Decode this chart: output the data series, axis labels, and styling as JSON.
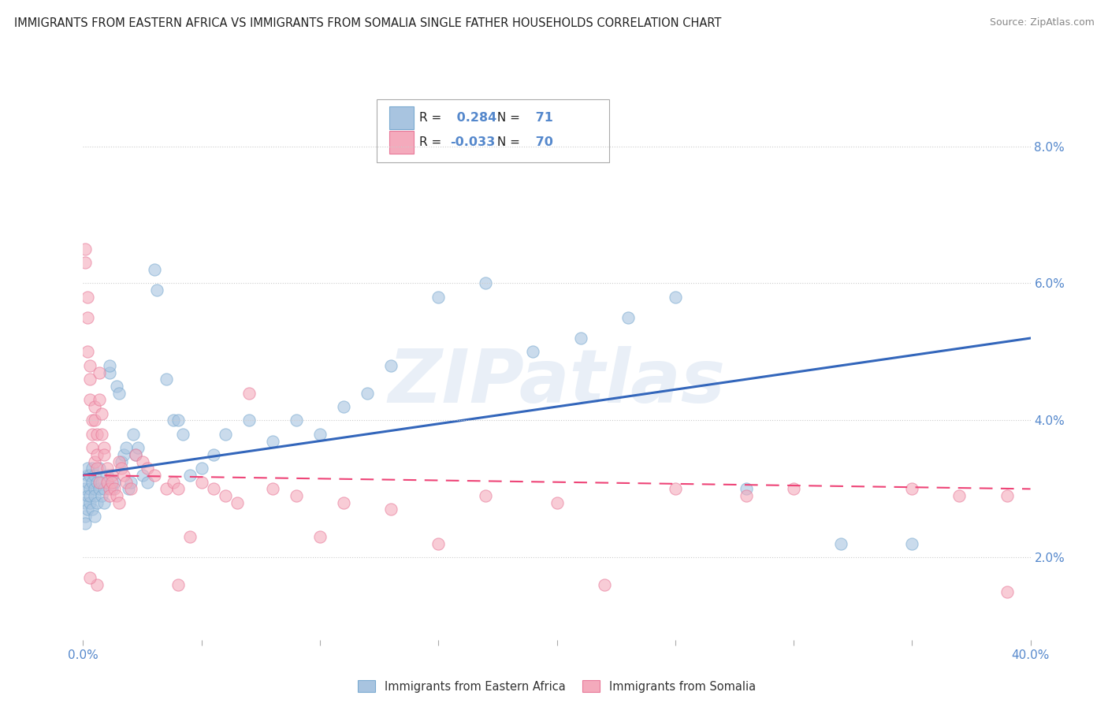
{
  "title": "IMMIGRANTS FROM EASTERN AFRICA VS IMMIGRANTS FROM SOMALIA SINGLE FATHER HOUSEHOLDS CORRELATION CHART",
  "source": "Source: ZipAtlas.com",
  "ylabel": "Single Father Households",
  "x_min": 0.0,
  "x_max": 0.4,
  "y_min": 0.008,
  "y_max": 0.088,
  "legend_blue_r": "0.284",
  "legend_blue_n": "71",
  "legend_pink_r": "-0.033",
  "legend_pink_n": "70",
  "blue_color": "#A8C4E0",
  "pink_color": "#F4AABC",
  "blue_edge_color": "#7AAAD0",
  "pink_edge_color": "#E87898",
  "blue_line_color": "#3366BB",
  "pink_line_color": "#EE4477",
  "watermark": "ZIPatlas",
  "grid_color": "#CCCCCC",
  "background_color": "#FFFFFF",
  "tick_color": "#5588CC",
  "blue_scatter": [
    [
      0.001,
      0.03
    ],
    [
      0.001,
      0.028
    ],
    [
      0.001,
      0.026
    ],
    [
      0.001,
      0.025
    ],
    [
      0.002,
      0.032
    ],
    [
      0.002,
      0.029
    ],
    [
      0.002,
      0.027
    ],
    [
      0.002,
      0.031
    ],
    [
      0.002,
      0.033
    ],
    [
      0.003,
      0.03
    ],
    [
      0.003,
      0.028
    ],
    [
      0.003,
      0.032
    ],
    [
      0.003,
      0.029
    ],
    [
      0.004,
      0.031
    ],
    [
      0.004,
      0.033
    ],
    [
      0.004,
      0.027
    ],
    [
      0.005,
      0.03
    ],
    [
      0.005,
      0.032
    ],
    [
      0.005,
      0.029
    ],
    [
      0.005,
      0.026
    ],
    [
      0.006,
      0.028
    ],
    [
      0.006,
      0.031
    ],
    [
      0.007,
      0.03
    ],
    [
      0.007,
      0.033
    ],
    [
      0.008,
      0.029
    ],
    [
      0.008,
      0.031
    ],
    [
      0.009,
      0.028
    ],
    [
      0.009,
      0.03
    ],
    [
      0.01,
      0.032
    ],
    [
      0.011,
      0.047
    ],
    [
      0.011,
      0.048
    ],
    [
      0.012,
      0.03
    ],
    [
      0.013,
      0.031
    ],
    [
      0.014,
      0.045
    ],
    [
      0.015,
      0.044
    ],
    [
      0.016,
      0.034
    ],
    [
      0.017,
      0.035
    ],
    [
      0.018,
      0.036
    ],
    [
      0.019,
      0.03
    ],
    [
      0.02,
      0.031
    ],
    [
      0.021,
      0.038
    ],
    [
      0.022,
      0.035
    ],
    [
      0.023,
      0.036
    ],
    [
      0.025,
      0.032
    ],
    [
      0.027,
      0.031
    ],
    [
      0.03,
      0.062
    ],
    [
      0.031,
      0.059
    ],
    [
      0.035,
      0.046
    ],
    [
      0.038,
      0.04
    ],
    [
      0.04,
      0.04
    ],
    [
      0.042,
      0.038
    ],
    [
      0.045,
      0.032
    ],
    [
      0.05,
      0.033
    ],
    [
      0.055,
      0.035
    ],
    [
      0.06,
      0.038
    ],
    [
      0.07,
      0.04
    ],
    [
      0.08,
      0.037
    ],
    [
      0.09,
      0.04
    ],
    [
      0.1,
      0.038
    ],
    [
      0.11,
      0.042
    ],
    [
      0.12,
      0.044
    ],
    [
      0.13,
      0.048
    ],
    [
      0.15,
      0.058
    ],
    [
      0.17,
      0.06
    ],
    [
      0.19,
      0.05
    ],
    [
      0.21,
      0.052
    ],
    [
      0.23,
      0.055
    ],
    [
      0.25,
      0.058
    ],
    [
      0.28,
      0.03
    ],
    [
      0.32,
      0.022
    ],
    [
      0.35,
      0.022
    ]
  ],
  "pink_scatter": [
    [
      0.001,
      0.065
    ],
    [
      0.001,
      0.063
    ],
    [
      0.002,
      0.058
    ],
    [
      0.002,
      0.055
    ],
    [
      0.002,
      0.05
    ],
    [
      0.003,
      0.048
    ],
    [
      0.003,
      0.046
    ],
    [
      0.003,
      0.043
    ],
    [
      0.004,
      0.04
    ],
    [
      0.004,
      0.038
    ],
    [
      0.004,
      0.036
    ],
    [
      0.005,
      0.034
    ],
    [
      0.005,
      0.042
    ],
    [
      0.005,
      0.04
    ],
    [
      0.006,
      0.038
    ],
    [
      0.006,
      0.035
    ],
    [
      0.006,
      0.033
    ],
    [
      0.007,
      0.031
    ],
    [
      0.007,
      0.047
    ],
    [
      0.007,
      0.043
    ],
    [
      0.008,
      0.041
    ],
    [
      0.008,
      0.038
    ],
    [
      0.009,
      0.036
    ],
    [
      0.009,
      0.035
    ],
    [
      0.01,
      0.033
    ],
    [
      0.01,
      0.031
    ],
    [
      0.011,
      0.03
    ],
    [
      0.011,
      0.029
    ],
    [
      0.012,
      0.032
    ],
    [
      0.012,
      0.031
    ],
    [
      0.013,
      0.03
    ],
    [
      0.014,
      0.029
    ],
    [
      0.015,
      0.028
    ],
    [
      0.015,
      0.034
    ],
    [
      0.016,
      0.033
    ],
    [
      0.017,
      0.032
    ],
    [
      0.018,
      0.031
    ],
    [
      0.02,
      0.03
    ],
    [
      0.022,
      0.035
    ],
    [
      0.025,
      0.034
    ],
    [
      0.027,
      0.033
    ],
    [
      0.03,
      0.032
    ],
    [
      0.035,
      0.03
    ],
    [
      0.038,
      0.031
    ],
    [
      0.04,
      0.03
    ],
    [
      0.045,
      0.023
    ],
    [
      0.05,
      0.031
    ],
    [
      0.055,
      0.03
    ],
    [
      0.06,
      0.029
    ],
    [
      0.065,
      0.028
    ],
    [
      0.07,
      0.044
    ],
    [
      0.08,
      0.03
    ],
    [
      0.09,
      0.029
    ],
    [
      0.1,
      0.023
    ],
    [
      0.11,
      0.028
    ],
    [
      0.13,
      0.027
    ],
    [
      0.15,
      0.022
    ],
    [
      0.17,
      0.029
    ],
    [
      0.2,
      0.028
    ],
    [
      0.22,
      0.016
    ],
    [
      0.25,
      0.03
    ],
    [
      0.28,
      0.029
    ],
    [
      0.3,
      0.03
    ],
    [
      0.35,
      0.03
    ],
    [
      0.37,
      0.029
    ],
    [
      0.39,
      0.029
    ],
    [
      0.39,
      0.015
    ],
    [
      0.04,
      0.016
    ],
    [
      0.006,
      0.016
    ],
    [
      0.003,
      0.017
    ]
  ],
  "y_ticks": [
    0.02,
    0.04,
    0.06,
    0.08
  ],
  "y_tick_labels": [
    "2.0%",
    "4.0%",
    "6.0%",
    "8.0%"
  ]
}
